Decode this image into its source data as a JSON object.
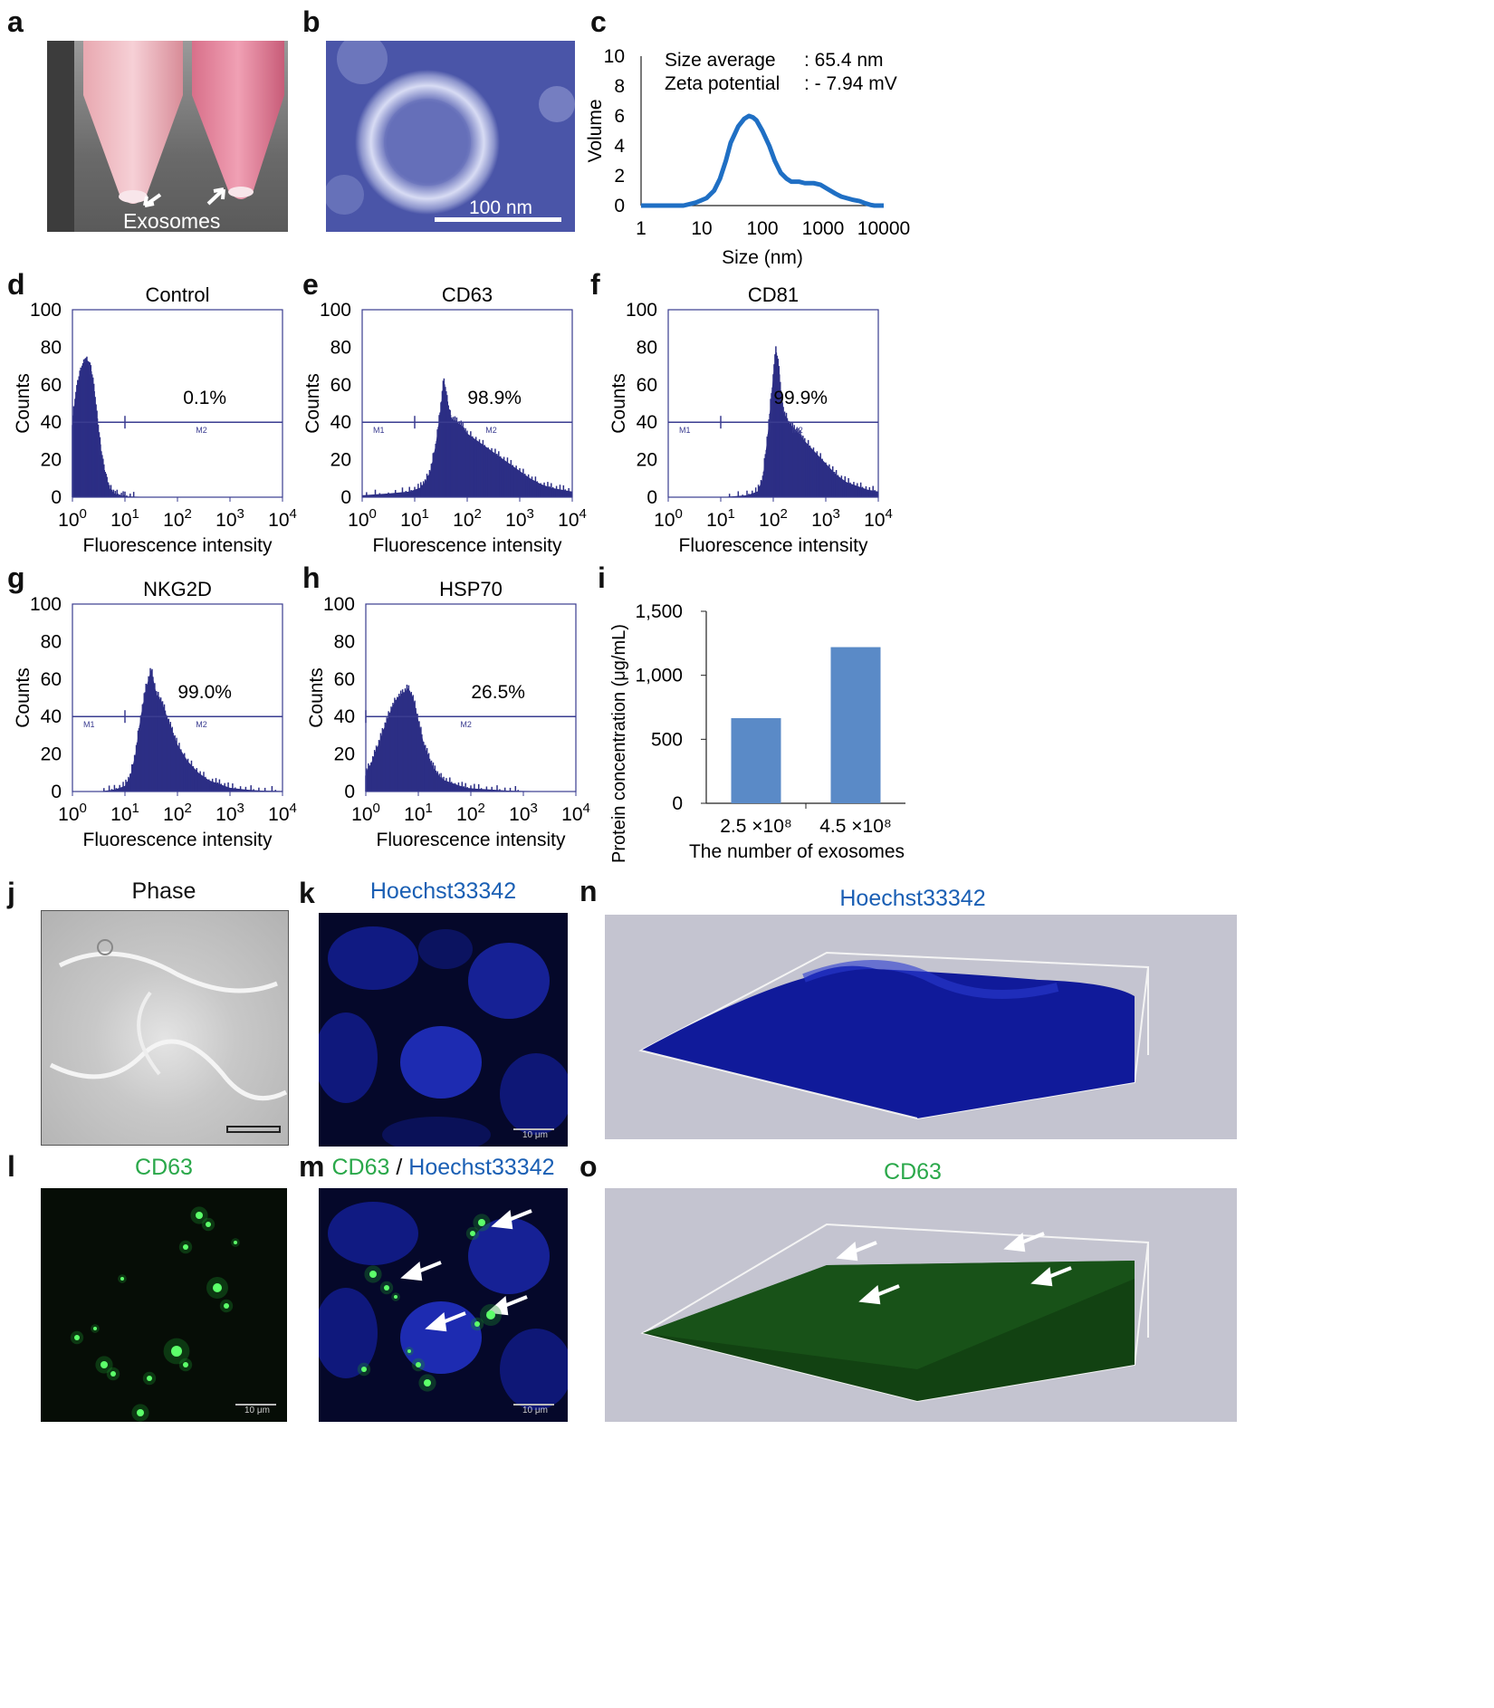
{
  "panel_labels": [
    "a",
    "b",
    "c",
    "d",
    "e",
    "f",
    "g",
    "h",
    "i",
    "j",
    "k",
    "n",
    "l",
    "m",
    "o"
  ],
  "colors": {
    "histogram": "#2c2e85",
    "dls_line": "#1f6fc4",
    "bar": "#5a8ac7",
    "green": "#2aa84a",
    "blue": "#1a5fb4"
  },
  "images": {
    "a_label": "Exosomes",
    "b_scale": "100 nm",
    "j_title": "Phase",
    "k_title": "Hoechst33342",
    "l_title": "CD63",
    "m_title_green": "CD63",
    "m_title_sep": " / ",
    "m_title_blue": "Hoechst33342",
    "n_title": "Hoechst33342",
    "o_title": "CD63",
    "scale_10um": "10 μm"
  },
  "chart_data": [
    {
      "id": "c",
      "type": "line",
      "xlabel": "Size (nm)",
      "ylabel": "Volume",
      "x_scale": "log",
      "xlim": [
        1,
        10000
      ],
      "ylim": [
        0,
        10
      ],
      "x_ticks": [
        "1",
        "10",
        "100",
        "1000",
        "10000"
      ],
      "y_ticks": [
        "0",
        "2",
        "4",
        "6",
        "8",
        "10"
      ],
      "annotations": [
        {
          "label": "Size average",
          "value": ": 65.4 nm"
        },
        {
          "label": "Zeta potential",
          "value": ": - 7.94 mV"
        }
      ],
      "x": [
        1,
        5,
        8,
        12,
        16,
        20,
        25,
        30,
        40,
        50,
        60,
        70,
        80,
        100,
        130,
        160,
        200,
        250,
        300,
        400,
        500,
        700,
        900,
        1200,
        1600,
        2000,
        3000,
        4000,
        5000,
        6000,
        7000,
        8000,
        10000
      ],
      "y": [
        0,
        0,
        0.2,
        0.5,
        1.0,
        1.8,
        3.0,
        4.2,
        5.3,
        5.8,
        6.0,
        5.9,
        5.7,
        5.0,
        4.0,
        3.0,
        2.2,
        1.8,
        1.6,
        1.6,
        1.5,
        1.5,
        1.4,
        1.1,
        0.8,
        0.6,
        0.4,
        0.3,
        0.15,
        0.05,
        0,
        0,
        0
      ]
    },
    {
      "id": "d",
      "type": "area",
      "title": "Control",
      "xlabel": "Fluorescence intensity",
      "ylabel": "Counts",
      "ylim": [
        0,
        100
      ],
      "y_ticks": [
        "0",
        "20",
        "40",
        "60",
        "80",
        "100"
      ],
      "x_ticks": [
        "10^0",
        "10^1",
        "10^2",
        "10^3",
        "10^4"
      ],
      "percent": "0.1%",
      "gate_y": 40,
      "gate_x": 1.0,
      "gate_labels": {
        "m1": "",
        "m2": "M2"
      },
      "x_log": [
        0.0,
        0.05,
        0.1,
        0.15,
        0.2,
        0.25,
        0.3,
        0.35,
        0.4,
        0.45,
        0.5,
        0.55,
        0.6,
        0.65,
        0.7,
        0.8,
        0.9,
        1.0,
        1.2,
        1.5,
        2.0,
        3.0,
        4.0
      ],
      "counts": [
        40,
        52,
        60,
        66,
        70,
        73,
        72,
        68,
        60,
        48,
        35,
        24,
        15,
        9,
        5,
        2,
        1,
        0.5,
        0.3,
        0.1,
        0,
        0,
        0
      ]
    },
    {
      "id": "e",
      "type": "area",
      "title": "CD63",
      "xlabel": "Fluorescence intensity",
      "ylabel": "Counts",
      "ylim": [
        0,
        100
      ],
      "y_ticks": [
        "0",
        "20",
        "40",
        "60",
        "80",
        "100"
      ],
      "x_ticks": [
        "10^0",
        "10^1",
        "10^2",
        "10^3",
        "10^4"
      ],
      "percent": "98.9%",
      "gate_y": 40,
      "gate_x": 1.0,
      "gate_labels": {
        "m1": "M1",
        "m2": "M2"
      },
      "x_log": [
        0.0,
        0.5,
        0.9,
        1.1,
        1.2,
        1.3,
        1.4,
        1.5,
        1.55,
        1.6,
        1.65,
        1.7,
        1.8,
        1.9,
        2.0,
        2.2,
        2.4,
        2.6,
        2.8,
        3.0,
        3.2,
        3.4,
        3.6,
        3.8,
        4.0
      ],
      "counts": [
        1,
        2,
        3,
        5,
        8,
        14,
        28,
        48,
        62,
        55,
        46,
        42,
        40,
        38,
        34,
        30,
        26,
        22,
        18,
        14,
        10,
        7,
        5,
        4,
        3
      ]
    },
    {
      "id": "f",
      "type": "area",
      "title": "CD81",
      "xlabel": "Fluorescence intensity",
      "ylabel": "Counts",
      "ylim": [
        0,
        100
      ],
      "y_ticks": [
        "0",
        "20",
        "40",
        "60",
        "80",
        "100"
      ],
      "x_ticks": [
        "10^0",
        "10^1",
        "10^2",
        "10^3",
        "10^4"
      ],
      "percent": "99.9%",
      "gate_y": 40,
      "gate_x": 1.0,
      "gate_labels": {
        "m1": "M1",
        "m2": "M2"
      },
      "x_log": [
        0.0,
        1.0,
        1.5,
        1.7,
        1.8,
        1.9,
        2.0,
        2.05,
        2.1,
        2.15,
        2.2,
        2.3,
        2.4,
        2.5,
        2.6,
        2.8,
        3.0,
        3.2,
        3.4,
        3.6,
        3.8,
        4.0
      ],
      "counts": [
        0,
        0,
        1,
        3,
        10,
        35,
        65,
        78,
        70,
        55,
        45,
        40,
        36,
        34,
        30,
        24,
        18,
        12,
        8,
        6,
        4,
        3
      ]
    },
    {
      "id": "g",
      "type": "area",
      "title": "NKG2D",
      "xlabel": "Fluorescence intensity",
      "ylabel": "Counts",
      "ylim": [
        0,
        100
      ],
      "y_ticks": [
        "0",
        "20",
        "40",
        "60",
        "80",
        "100"
      ],
      "x_ticks": [
        "10^0",
        "10^1",
        "10^2",
        "10^3",
        "10^4"
      ],
      "percent": "99.0%",
      "gate_y": 40,
      "gate_x": 1.0,
      "gate_labels": {
        "m1": "M1",
        "m2": "M2"
      },
      "x_log": [
        0.0,
        0.5,
        0.8,
        1.0,
        1.1,
        1.2,
        1.3,
        1.4,
        1.5,
        1.6,
        1.7,
        1.8,
        1.9,
        2.0,
        2.2,
        2.4,
        2.6,
        2.8,
        3.0,
        3.3,
        3.6,
        4.0
      ],
      "counts": [
        0,
        0,
        1,
        3,
        8,
        20,
        40,
        55,
        65,
        52,
        48,
        40,
        32,
        25,
        16,
        10,
        6,
        4,
        2,
        1,
        0.5,
        0.3
      ]
    },
    {
      "id": "h",
      "type": "area",
      "title": "HSP70",
      "xlabel": "Fluorescence intensity",
      "ylabel": "Counts",
      "ylim": [
        0,
        100
      ],
      "y_ticks": [
        "0",
        "20",
        "40",
        "60",
        "80",
        "100"
      ],
      "x_ticks": [
        "10^0",
        "10^1",
        "10^2",
        "10^3",
        "10^4"
      ],
      "percent": "26.5%",
      "gate_y": 40,
      "gate_x": 0.0,
      "gate_labels": {
        "m1": "",
        "m2": "M2"
      },
      "x_log": [
        0.0,
        0.1,
        0.2,
        0.3,
        0.4,
        0.5,
        0.6,
        0.7,
        0.8,
        0.9,
        1.0,
        1.1,
        1.2,
        1.3,
        1.4,
        1.5,
        1.7,
        1.9,
        2.1,
        2.4,
        2.7,
        3.0,
        3.5,
        4.0
      ],
      "counts": [
        10,
        15,
        22,
        30,
        38,
        45,
        50,
        52,
        55,
        50,
        38,
        26,
        18,
        12,
        8,
        6,
        4,
        2,
        1.5,
        1,
        0.5,
        0.3,
        0.1,
        0
      ]
    },
    {
      "id": "i",
      "type": "bar",
      "ylabel": "Protein concentration (μg/mL)",
      "xlabel": "The number of  exosomes",
      "categories": [
        "2.5 ×10⁸",
        "4.5 ×10⁸"
      ],
      "values": [
        665,
        1220
      ],
      "ylim": [
        0,
        1500
      ],
      "y_ticks": [
        "0",
        "500",
        "1,000",
        "1,500"
      ]
    }
  ]
}
